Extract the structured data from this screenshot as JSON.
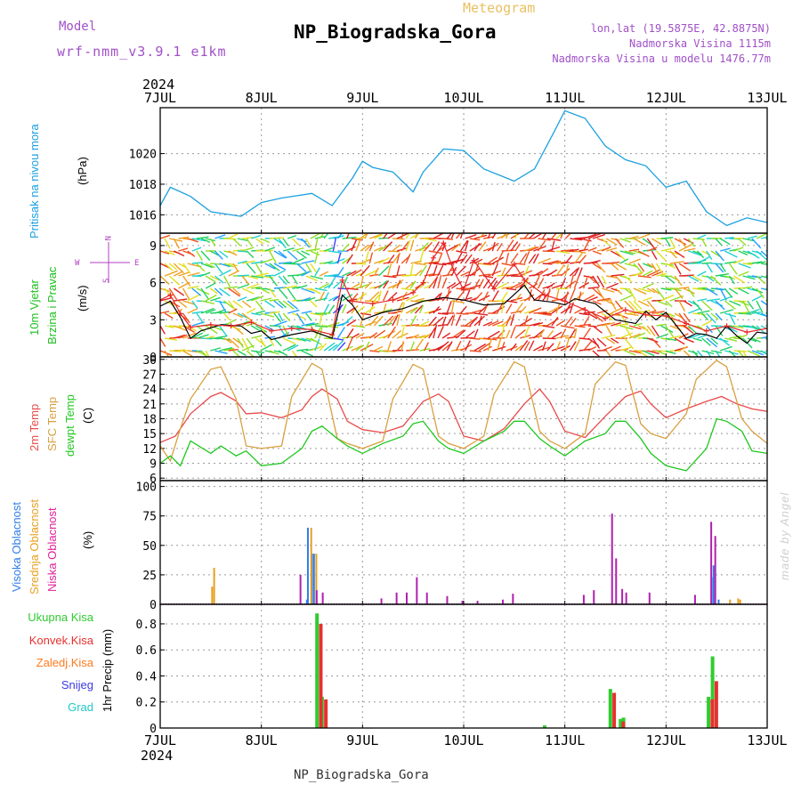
{
  "header": {
    "model_label": "Model",
    "model_value": "wrf-nmm_v3.9.1 e1km",
    "title": "NP_Biogradska_Gora",
    "product": "Meteogram",
    "lonlat": "lon,lat (19.5875E, 42.8875N)",
    "height_real": "Nadmorska Visina 1115m",
    "height_model": "Nadmorska Visina u modelu 1476.77m"
  },
  "footer": {
    "station": "NP_Biogradska_Gora",
    "credit": "made by Angel"
  },
  "time_axis": {
    "year": "2024",
    "ticks": [
      "7JUL",
      "8JUL",
      "9JUL",
      "10JUL",
      "11JUL",
      "12JUL",
      "13JUL"
    ]
  },
  "colors": {
    "pressure": "#1ca0e0",
    "wind_speed": "#000000",
    "gust": "#e82828",
    "t2m": "#e84a4a",
    "sfc_temp": "#d8a040",
    "dewpt": "#20c820",
    "cloud_high": "#2e7ce8",
    "cloud_mid": "#e8a020",
    "cloud_low": "#b020b0",
    "precip_total": "#30cc30",
    "precip_conv": "#e83030",
    "precip_ice": "#ff7a20",
    "snow": "#3a3ae0",
    "hail": "#20c8c8",
    "wind_label": "#20c020",
    "dir_label": "#b040c0"
  },
  "chart_data": [
    {
      "id": "pressure",
      "type": "line",
      "ylabel_1": "Pritisak na nivou mora",
      "ylabel_2": "(hPa)",
      "ylim": [
        1014.8,
        1023
      ],
      "yticks": [
        1016,
        1018,
        1020
      ],
      "series": [
        {
          "x": [
            0,
            0.1,
            0.3,
            0.5,
            0.8,
            1,
            1.2,
            1.5,
            1.7,
            1.9,
            2.0,
            2.1,
            2.3,
            2.5,
            2.6,
            2.8,
            3.0,
            3.2,
            3.5,
            3.7,
            3.9,
            4.0,
            4.2,
            4.4,
            4.6,
            4.8,
            5.0,
            5.2,
            5.4,
            5.6,
            5.8,
            6.0
          ],
          "y": [
            1016.6,
            1017.8,
            1017.2,
            1016.2,
            1015.9,
            1016.8,
            1017.1,
            1017.4,
            1016.6,
            1018.4,
            1019.5,
            1019.1,
            1018.8,
            1017.5,
            1018.8,
            1020.3,
            1020.2,
            1019.0,
            1018.2,
            1019.0,
            1021.5,
            1022.8,
            1022.3,
            1020.5,
            1019.6,
            1019.2,
            1017.8,
            1018.2,
            1016.2,
            1015.3,
            1015.8,
            1015.5
          ]
        }
      ]
    },
    {
      "id": "wind",
      "type": "line",
      "ylabel_1": "10m Vjetar",
      "ylabel_2": "Brzina i Pravac",
      "ylabel_3": "(m/s)",
      "compass": [
        "W",
        "E",
        "N",
        "S"
      ],
      "ylim": [
        0,
        10
      ],
      "yticks": [
        0,
        3,
        6,
        9
      ],
      "series": [
        {
          "name": "speed",
          "x": [
            0,
            0.1,
            0.2,
            0.3,
            0.4,
            0.6,
            0.8,
            0.9,
            1.0,
            1.1,
            1.3,
            1.5,
            1.7,
            1.8,
            1.9,
            2.0,
            2.2,
            2.4,
            2.6,
            2.8,
            3.0,
            3.2,
            3.4,
            3.6,
            3.7,
            3.9,
            4.0,
            4.1,
            4.3,
            4.5,
            4.7,
            4.8,
            4.9,
            5.0,
            5.2,
            5.3,
            5.4,
            5.5,
            5.6,
            5.7,
            5.8,
            5.9,
            6.0
          ],
          "y": [
            4.1,
            4.5,
            3.2,
            1.5,
            2.1,
            2.6,
            2.5,
            1.9,
            2.1,
            1.4,
            1.8,
            2.1,
            1.5,
            5.0,
            4.2,
            3.0,
            3.6,
            3.9,
            4.5,
            4.8,
            4.6,
            4.2,
            4.3,
            5.8,
            4.6,
            4.4,
            4.2,
            4.7,
            4.3,
            3.0,
            2.7,
            3.7,
            3.0,
            3.6,
            1.5,
            1.9,
            1.8,
            1.5,
            2.5,
            1.7,
            1.1,
            2.0,
            1.9
          ]
        },
        {
          "name": "gust",
          "x": [
            0,
            0.1,
            0.2,
            0.3,
            0.5,
            0.7,
            0.9,
            1.1,
            1.3,
            1.5,
            1.7,
            1.8,
            1.9,
            2.1,
            2.3,
            2.5,
            2.6,
            2.7,
            2.8,
            2.9,
            3.0,
            3.1,
            3.3,
            3.5,
            3.6,
            3.8,
            4.0,
            4.2,
            4.4,
            4.6,
            4.8,
            5.0,
            5.2,
            5.4,
            5.6,
            5.8,
            6.0
          ],
          "y": [
            4.6,
            5.0,
            3.5,
            2.4,
            2.6,
            2.5,
            2.8,
            2.1,
            2.3,
            2.2,
            1.8,
            6.2,
            4.5,
            4.3,
            4.6,
            5.2,
            6.0,
            8.0,
            9.2,
            7.0,
            5.4,
            7.8,
            5.5,
            7.5,
            6.2,
            5.0,
            4.5,
            3.8,
            3.1,
            3.8,
            3.4,
            3.3,
            2.7,
            2.1,
            2.5,
            2.0,
            2.3
          ]
        }
      ]
    },
    {
      "id": "temperature",
      "type": "line",
      "ylabel_1": "2m Temp",
      "ylabel_2": "SFC Temp",
      "ylabel_3": "dewpt Temp",
      "ylabel_4": "(C)",
      "ylim": [
        5.5,
        30.5
      ],
      "yticks": [
        6,
        9,
        12,
        15,
        18,
        21,
        24,
        27,
        30
      ],
      "series": [
        {
          "name": "2m Temp",
          "x": [
            0,
            0.15,
            0.3,
            0.5,
            0.6,
            0.75,
            0.85,
            1.0,
            1.2,
            1.4,
            1.5,
            1.6,
            1.75,
            1.85,
            2.0,
            2.2,
            2.4,
            2.6,
            2.75,
            2.85,
            3.0,
            3.2,
            3.4,
            3.6,
            3.75,
            3.85,
            4.0,
            4.2,
            4.4,
            4.6,
            4.75,
            4.85,
            5.0,
            5.2,
            5.4,
            5.55,
            5.7,
            5.85,
            6.0
          ],
          "y": [
            13.2,
            14.5,
            19.0,
            22.5,
            23.3,
            21.6,
            19.0,
            19.2,
            18.2,
            19.8,
            22.5,
            24.0,
            22.0,
            17.5,
            15.8,
            15.2,
            16.5,
            21.5,
            23.0,
            21.5,
            14.5,
            13.5,
            16.0,
            21.0,
            24.0,
            21.5,
            15.5,
            14.2,
            18.5,
            22.5,
            23.6,
            21.0,
            18.2,
            20.0,
            21.5,
            22.5,
            21.0,
            20.0,
            19.5
          ]
        },
        {
          "name": "SFC Temp",
          "x": [
            0,
            0.1,
            0.2,
            0.3,
            0.5,
            0.6,
            0.75,
            0.85,
            1.0,
            1.2,
            1.3,
            1.5,
            1.6,
            1.75,
            1.85,
            2.0,
            2.2,
            2.3,
            2.5,
            2.6,
            2.75,
            2.85,
            3.0,
            3.2,
            3.3,
            3.5,
            3.6,
            3.75,
            3.85,
            4.0,
            4.2,
            4.3,
            4.5,
            4.6,
            4.75,
            4.85,
            5.0,
            5.2,
            5.3,
            5.5,
            5.6,
            5.75,
            5.85,
            6.0
          ],
          "y": [
            12.5,
            9.5,
            16.0,
            22.0,
            28.0,
            28.5,
            22.0,
            12.5,
            12.0,
            12.5,
            22.5,
            29.2,
            28.0,
            14.0,
            13.0,
            12.0,
            13.5,
            22.0,
            29.0,
            28.0,
            14.5,
            13.0,
            12.0,
            14.5,
            23.0,
            29.5,
            28.5,
            15.5,
            13.5,
            12.0,
            15.0,
            25.0,
            29.5,
            28.8,
            17.0,
            15.0,
            14.0,
            19.0,
            26.0,
            29.8,
            28.5,
            18.0,
            15.5,
            13.0
          ]
        },
        {
          "name": "dewpt Temp",
          "x": [
            0,
            0.1,
            0.2,
            0.3,
            0.5,
            0.6,
            0.75,
            0.85,
            1.0,
            1.2,
            1.4,
            1.5,
            1.6,
            1.75,
            1.85,
            2.0,
            2.2,
            2.4,
            2.5,
            2.6,
            2.75,
            2.85,
            3.0,
            3.2,
            3.4,
            3.5,
            3.6,
            3.75,
            3.85,
            4.0,
            4.2,
            4.4,
            4.5,
            4.6,
            4.75,
            4.85,
            5.0,
            5.2,
            5.4,
            5.5,
            5.6,
            5.75,
            5.85,
            6.0
          ],
          "y": [
            9.0,
            10.5,
            8.5,
            13.5,
            11.0,
            12.5,
            10.5,
            11.5,
            8.5,
            9.0,
            12.0,
            15.5,
            16.5,
            14.0,
            12.5,
            11.0,
            13.0,
            14.5,
            17.0,
            17.5,
            13.5,
            12.0,
            11.0,
            13.5,
            15.5,
            17.5,
            17.5,
            14.0,
            12.5,
            10.5,
            13.5,
            15.0,
            17.5,
            17.5,
            14.0,
            11.0,
            8.5,
            7.5,
            12.0,
            18.0,
            17.5,
            15.5,
            11.5,
            11.0
          ]
        }
      ]
    },
    {
      "id": "clouds",
      "type": "bar",
      "ylabel_1": "Visoka Oblacnost",
      "ylabel_2": "Srednja Oblacnost",
      "ylabel_3": "Niska Oblacnost",
      "ylabel_4": "(%)",
      "ylim": [
        0,
        105
      ],
      "yticks": [
        0,
        25,
        50,
        75,
        100
      ],
      "series": [
        {
          "name": "Visoka Oblacnost",
          "x": [
            1.45,
            1.46,
            1.5,
            1.52,
            5.45,
            5.47,
            5.52
          ],
          "values": [
            4,
            65,
            43,
            43,
            23,
            33,
            4
          ]
        },
        {
          "name": "Srednja Oblacnost",
          "x": [
            0.5,
            0.52,
            1.48,
            1.53,
            5.62,
            5.7,
            5.72
          ],
          "values": [
            15,
            31,
            65,
            43,
            4,
            5,
            4
          ]
        },
        {
          "name": "Niska Oblacnost",
          "x": [
            1.4,
            1.56,
            1.62,
            2.2,
            2.35,
            2.45,
            2.55,
            2.65,
            2.85,
            3.0,
            3.15,
            3.4,
            3.5,
            4.2,
            4.3,
            4.48,
            4.52,
            4.58,
            4.62,
            4.85,
            5.3,
            5.46,
            5.5
          ],
          "values": [
            25,
            12,
            10,
            5,
            10,
            10,
            23,
            10,
            7,
            3,
            3,
            4,
            9,
            8,
            12,
            77,
            39,
            13,
            10,
            10,
            8,
            70,
            58
          ]
        }
      ]
    },
    {
      "id": "precip",
      "type": "bar",
      "ylabel": "1hr Precip (mm)",
      "legend": [
        "Ukupna Kisa",
        "Konvek.Kisa",
        "Zaledj.Kisa",
        "Snijeg",
        "Grad"
      ],
      "ylim": [
        0,
        0.95
      ],
      "yticks": [
        0,
        0.2,
        0.4,
        0.6,
        0.8
      ],
      "series": [
        {
          "name": "Ukupna Kisa",
          "x": [
            1.55,
            1.6,
            3.8,
            4.45,
            4.55,
            4.58,
            5.42,
            5.46
          ],
          "values": [
            0.88,
            0.24,
            0.02,
            0.3,
            0.07,
            0.08,
            0.24,
            0.55
          ]
        },
        {
          "name": "Konvek.Kisa",
          "x": [
            1.57,
            1.62,
            4.47,
            4.56,
            5.44,
            5.48
          ],
          "values": [
            0.8,
            0.22,
            0.27,
            0.05,
            0.22,
            0.36
          ]
        }
      ]
    }
  ]
}
